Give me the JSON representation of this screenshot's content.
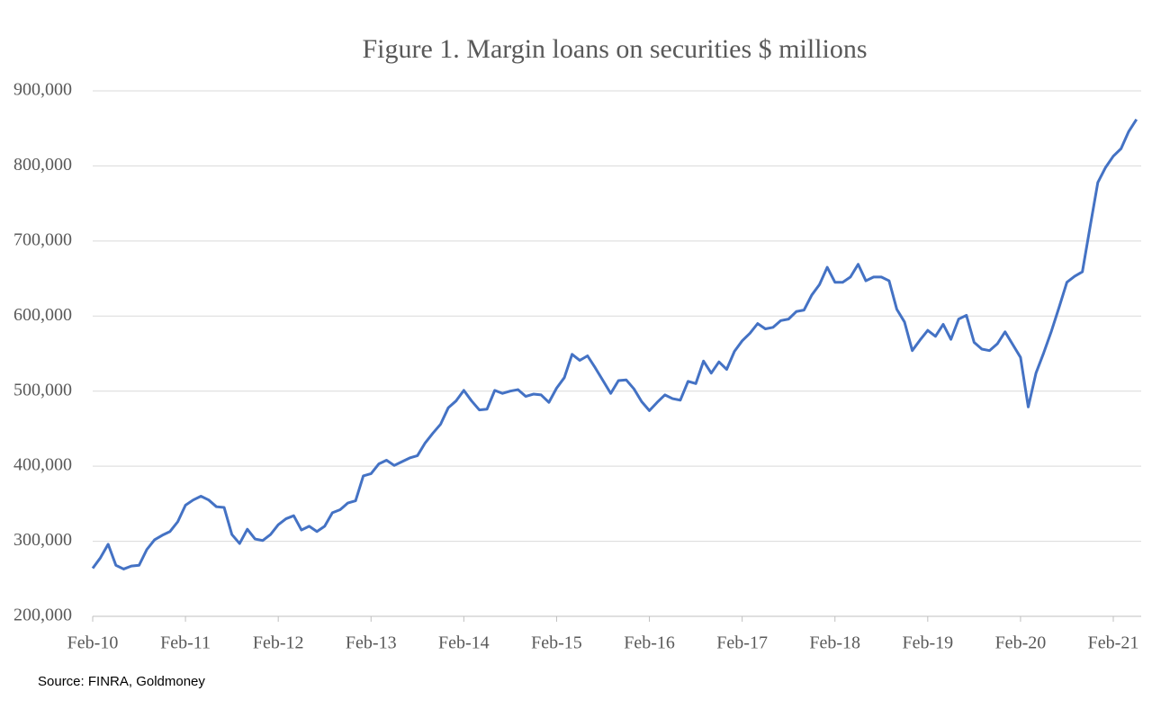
{
  "chart_data": {
    "type": "line",
    "title": "Figure 1. Margin loans on securities $ millions",
    "source": "Source: FINRA, Goldmoney",
    "categories": [
      "Feb-10",
      null,
      null,
      null,
      null,
      null,
      null,
      null,
      null,
      null,
      null,
      null,
      "Feb-11",
      null,
      null,
      null,
      null,
      null,
      null,
      null,
      null,
      null,
      null,
      null,
      "Feb-12",
      null,
      null,
      null,
      null,
      null,
      null,
      null,
      null,
      null,
      null,
      null,
      "Feb-13",
      null,
      null,
      null,
      null,
      null,
      null,
      null,
      null,
      null,
      null,
      null,
      "Feb-14",
      null,
      null,
      null,
      null,
      null,
      null,
      null,
      null,
      null,
      null,
      null,
      "Feb-15",
      null,
      null,
      null,
      null,
      null,
      null,
      null,
      null,
      null,
      null,
      null,
      "Feb-16",
      null,
      null,
      null,
      null,
      null,
      null,
      null,
      null,
      null,
      null,
      null,
      "Feb-17",
      null,
      null,
      null,
      null,
      null,
      null,
      null,
      null,
      null,
      null,
      null,
      "Feb-18",
      null,
      null,
      null,
      null,
      null,
      null,
      null,
      null,
      null,
      null,
      null,
      "Feb-19",
      null,
      null,
      null,
      null,
      null,
      null,
      null,
      null,
      null,
      null,
      null,
      "Feb-20",
      null,
      null,
      null,
      null,
      null,
      null,
      null,
      null,
      null,
      null,
      null,
      "Feb-21",
      null,
      null,
      null
    ],
    "series": [
      {
        "color": "#4472c4",
        "values": [
          264000,
          278000,
          296000,
          268000,
          263000,
          267000,
          268000,
          289000,
          302000,
          308000,
          313000,
          326000,
          348000,
          355000,
          360000,
          355000,
          346000,
          345000,
          309000,
          297000,
          316000,
          303000,
          301000,
          309000,
          322000,
          330000,
          334000,
          315000,
          320000,
          313000,
          320000,
          338000,
          342000,
          351000,
          354000,
          387000,
          390000,
          403000,
          408000,
          401000,
          406000,
          411000,
          414000,
          431000,
          444000,
          456000,
          478000,
          487000,
          501000,
          487000,
          475000,
          476000,
          501000,
          497000,
          500000,
          502000,
          493000,
          496000,
          495000,
          485000,
          504000,
          518000,
          549000,
          541000,
          547000,
          531000,
          514000,
          497000,
          514000,
          515000,
          503000,
          486000,
          474000,
          485000,
          495000,
          490000,
          488000,
          513000,
          510000,
          540000,
          524000,
          539000,
          529000,
          553000,
          567000,
          577000,
          590000,
          583000,
          585000,
          594000,
          596000,
          606000,
          608000,
          628000,
          642000,
          665000,
          645000,
          645000,
          652000,
          669000,
          647000,
          652000,
          652000,
          647000,
          609000,
          592000,
          554000,
          568000,
          581000,
          573000,
          589000,
          569000,
          596000,
          601000,
          565000,
          556000,
          554000,
          563000,
          579000,
          562000,
          545000,
          479000,
          524000,
          551000,
          580000,
          612000,
          645000,
          653000,
          659000,
          719000,
          778000,
          798000,
          813000,
          823000,
          846000,
          862000
        ]
      }
    ],
    "ylim": [
      200000,
      900000
    ],
    "yticks": [
      {
        "value": 200000,
        "label": "200,000"
      },
      {
        "value": 300000,
        "label": "300,000"
      },
      {
        "value": 400000,
        "label": "400,000"
      },
      {
        "value": 500000,
        "label": "500,000"
      },
      {
        "value": 600000,
        "label": "600,000"
      },
      {
        "value": 700000,
        "label": "700,000"
      },
      {
        "value": 800000,
        "label": "800,000"
      },
      {
        "value": 900000,
        "label": "900,000"
      }
    ],
    "grid": true
  }
}
